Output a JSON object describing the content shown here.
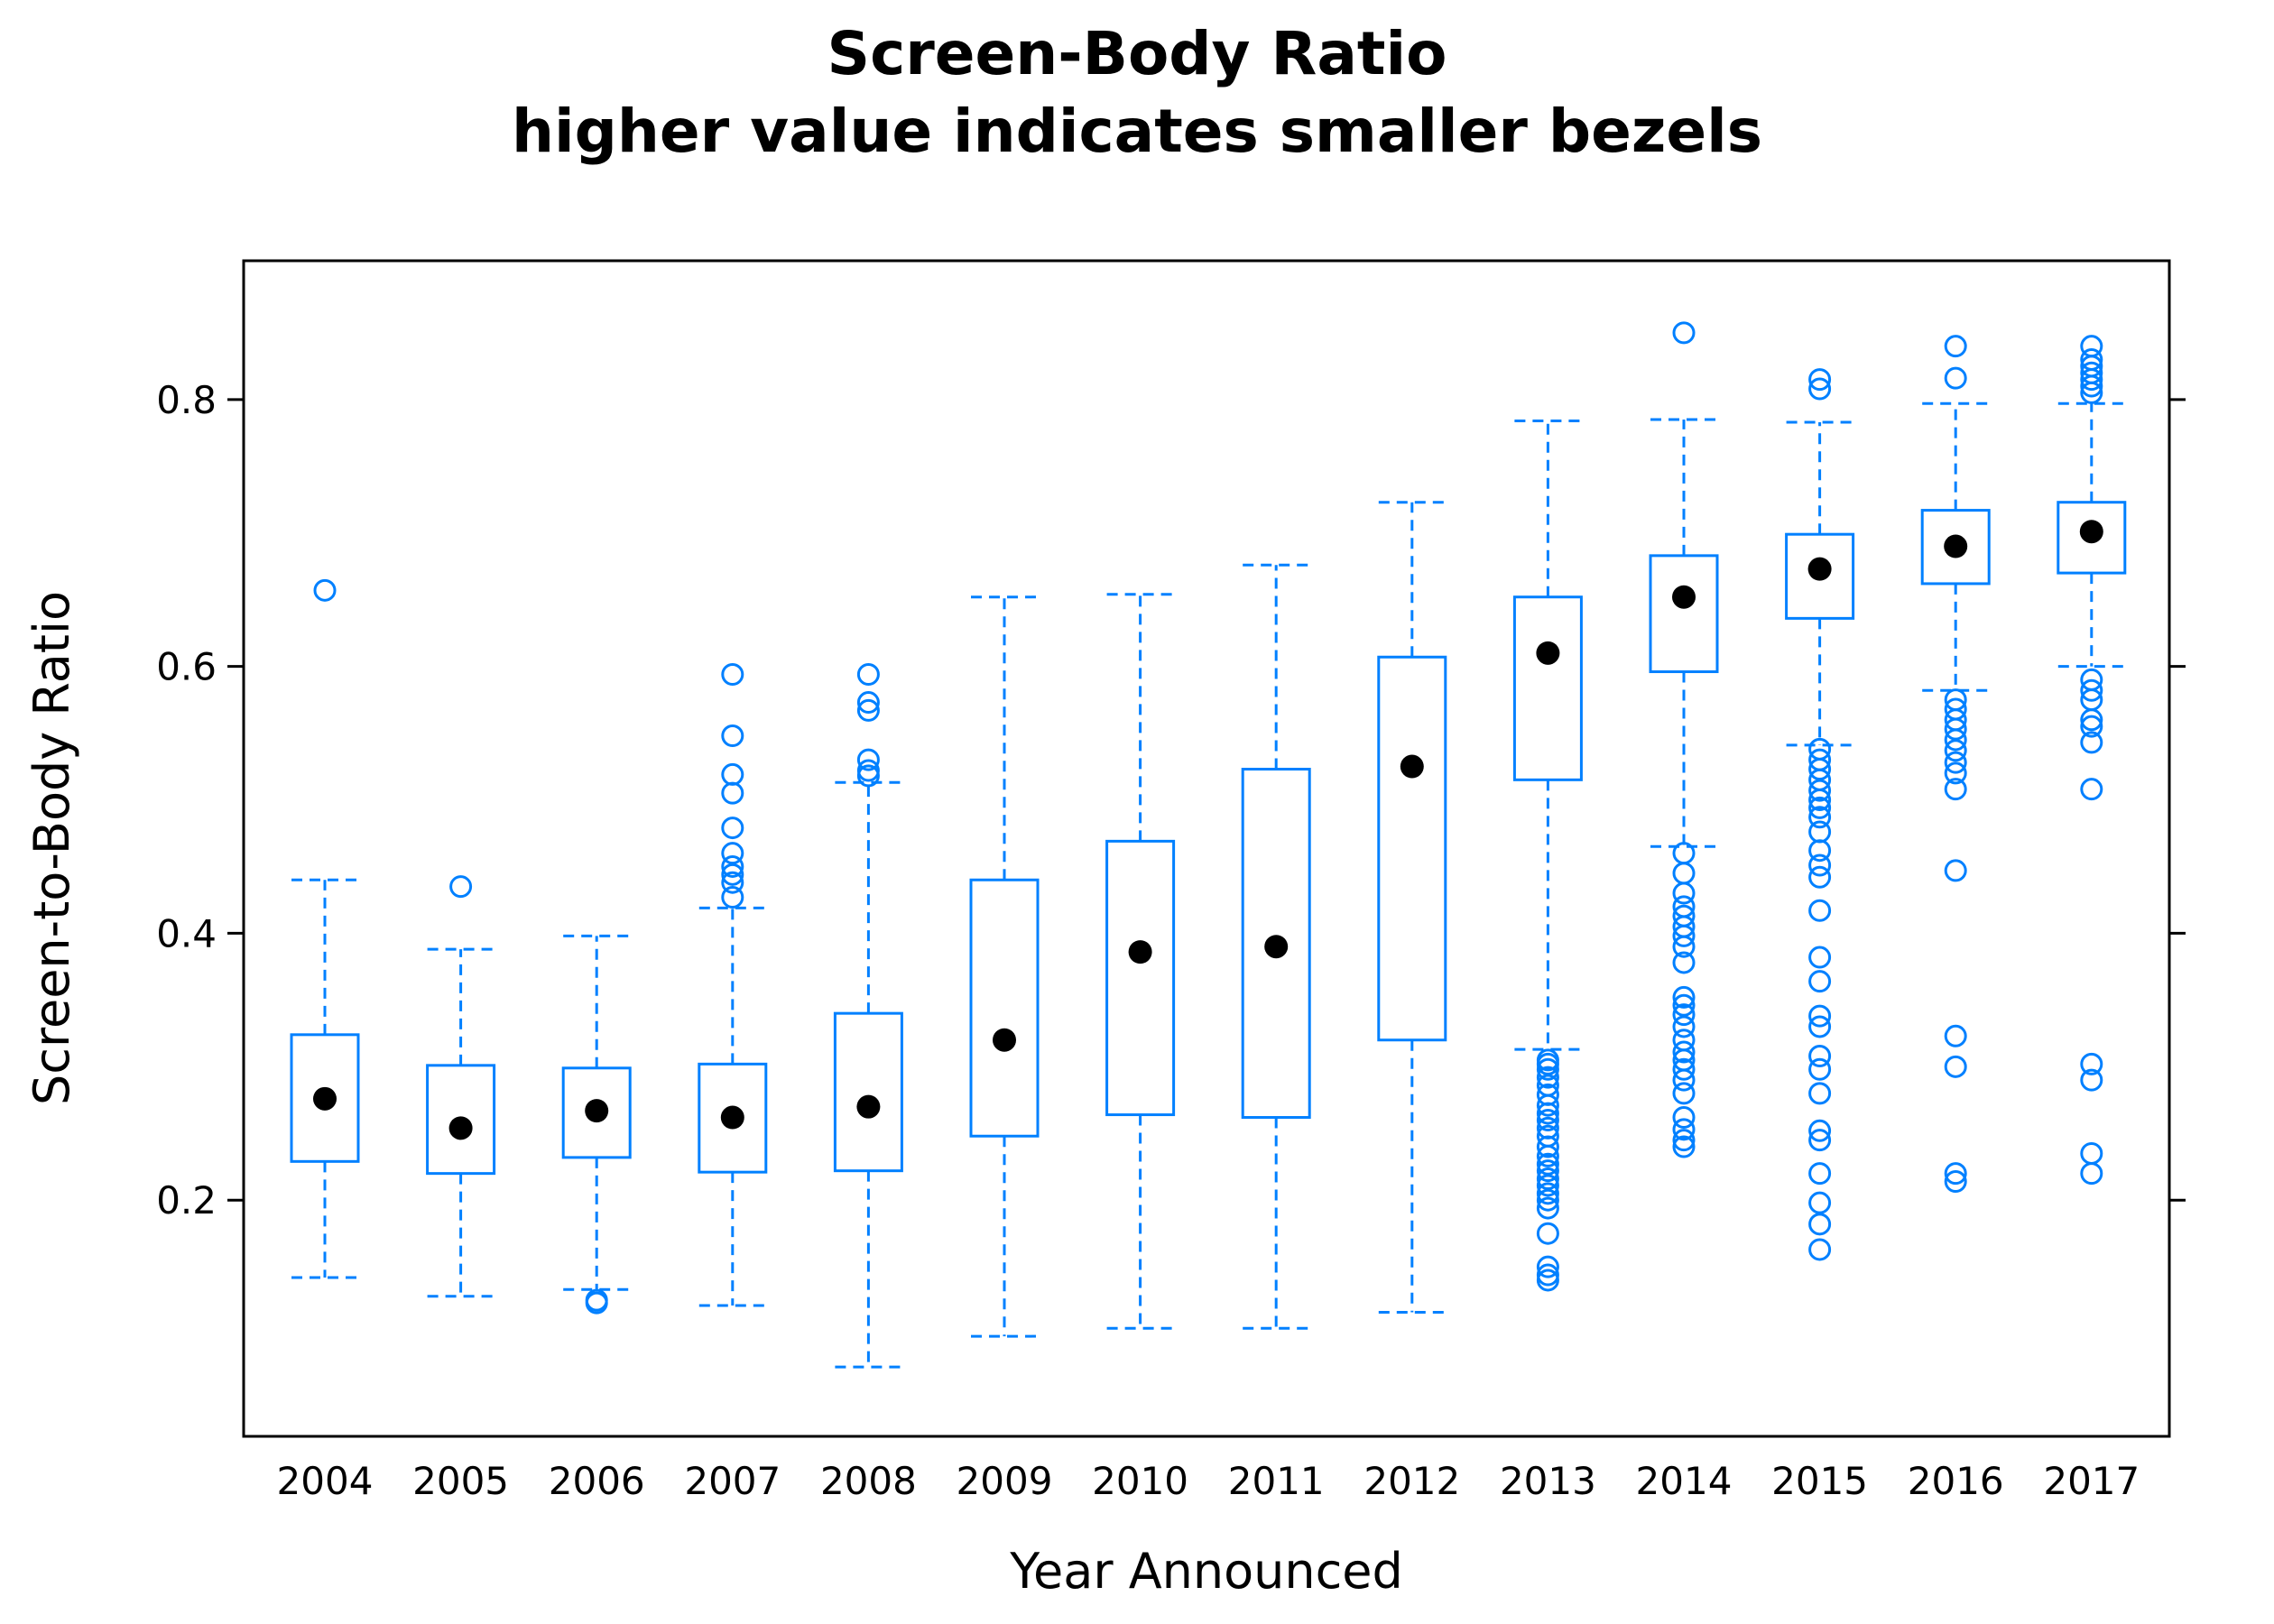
{
  "chart_data": {
    "type": "box",
    "title": "Screen-Body Ratio",
    "subtitle": "higher value indicates smaller bezels",
    "xlabel": "Year Announced",
    "ylabel": "Screen-to-Body Ratio",
    "ylim": [
      0.023,
      0.904
    ],
    "yticks": [
      "0.2",
      "0.4",
      "0.6",
      "0.8"
    ],
    "categories": [
      "2004",
      "2005",
      "2006",
      "2007",
      "2008",
      "2009",
      "2010",
      "2011",
      "2012",
      "2013",
      "2014",
      "2015",
      "2016",
      "2017"
    ],
    "grid": false,
    "colors": {
      "box": "#0080ff",
      "median": "#000000",
      "frame": "#000000"
    },
    "boxes": [
      {
        "year": "2004",
        "min": 0.142,
        "q1": 0.229,
        "median": 0.276,
        "q3": 0.324,
        "max": 0.44,
        "outliers": [
          0.657
        ]
      },
      {
        "year": "2005",
        "min": 0.128,
        "q1": 0.22,
        "median": 0.254,
        "q3": 0.301,
        "max": 0.388,
        "outliers": [
          0.435
        ]
      },
      {
        "year": "2006",
        "min": 0.133,
        "q1": 0.232,
        "median": 0.267,
        "q3": 0.299,
        "max": 0.398,
        "outliers": [
          0.125,
          0.123
        ]
      },
      {
        "year": "2007",
        "min": 0.121,
        "q1": 0.221,
        "median": 0.262,
        "q3": 0.302,
        "max": 0.419,
        "outliers": [
          0.427,
          0.438,
          0.444,
          0.45,
          0.46,
          0.479,
          0.505,
          0.519,
          0.548,
          0.594
        ]
      },
      {
        "year": "2008",
        "min": 0.075,
        "q1": 0.222,
        "median": 0.27,
        "q3": 0.34,
        "max": 0.513,
        "outliers": [
          0.518,
          0.522,
          0.53,
          0.567,
          0.573,
          0.594
        ]
      },
      {
        "year": "2009",
        "min": 0.098,
        "q1": 0.248,
        "median": 0.32,
        "q3": 0.44,
        "max": 0.652,
        "outliers": []
      },
      {
        "year": "2010",
        "min": 0.104,
        "q1": 0.264,
        "median": 0.386,
        "q3": 0.469,
        "max": 0.654,
        "outliers": []
      },
      {
        "year": "2011",
        "min": 0.104,
        "q1": 0.262,
        "median": 0.39,
        "q3": 0.523,
        "max": 0.676,
        "outliers": []
      },
      {
        "year": "2012",
        "min": 0.116,
        "q1": 0.32,
        "median": 0.525,
        "q3": 0.607,
        "max": 0.723,
        "outliers": []
      },
      {
        "year": "2013",
        "min": 0.313,
        "q1": 0.515,
        "median": 0.61,
        "q3": 0.652,
        "max": 0.784,
        "outliers": [
          0.305,
          0.302,
          0.298,
          0.292,
          0.286,
          0.279,
          0.271,
          0.265,
          0.26,
          0.254,
          0.248,
          0.24,
          0.233,
          0.227,
          0.222,
          0.216,
          0.211,
          0.205,
          0.2,
          0.194,
          0.175,
          0.15,
          0.144,
          0.14
        ]
      },
      {
        "year": "2014",
        "min": 0.465,
        "q1": 0.596,
        "median": 0.652,
        "q3": 0.683,
        "max": 0.785,
        "outliers": [
          0.85,
          0.46,
          0.445,
          0.43,
          0.42,
          0.413,
          0.405,
          0.398,
          0.39,
          0.378,
          0.352,
          0.346,
          0.339,
          0.33,
          0.32,
          0.311,
          0.305,
          0.298,
          0.29,
          0.28,
          0.262,
          0.253,
          0.245,
          0.24
        ]
      },
      {
        "year": "2015",
        "min": 0.541,
        "q1": 0.636,
        "median": 0.673,
        "q3": 0.699,
        "max": 0.783,
        "outliers": [
          0.815,
          0.808,
          0.538,
          0.53,
          0.523,
          0.515,
          0.507,
          0.5,
          0.494,
          0.487,
          0.476,
          0.462,
          0.451,
          0.442,
          0.417,
          0.382,
          0.364,
          0.338,
          0.33,
          0.308,
          0.298,
          0.28,
          0.252,
          0.245,
          0.22,
          0.198,
          0.182,
          0.163
        ]
      },
      {
        "year": "2016",
        "min": 0.582,
        "q1": 0.662,
        "median": 0.69,
        "q3": 0.717,
        "max": 0.797,
        "outliers": [
          0.84,
          0.816,
          0.575,
          0.568,
          0.56,
          0.553,
          0.545,
          0.537,
          0.528,
          0.52,
          0.508,
          0.447,
          0.323,
          0.3,
          0.22,
          0.214
        ]
      },
      {
        "year": "2017",
        "min": 0.6,
        "q1": 0.67,
        "median": 0.701,
        "q3": 0.723,
        "max": 0.797,
        "outliers": [
          0.84,
          0.83,
          0.825,
          0.82,
          0.815,
          0.81,
          0.805,
          0.59,
          0.582,
          0.575,
          0.56,
          0.555,
          0.543,
          0.508,
          0.302,
          0.29,
          0.235,
          0.22
        ]
      }
    ]
  }
}
